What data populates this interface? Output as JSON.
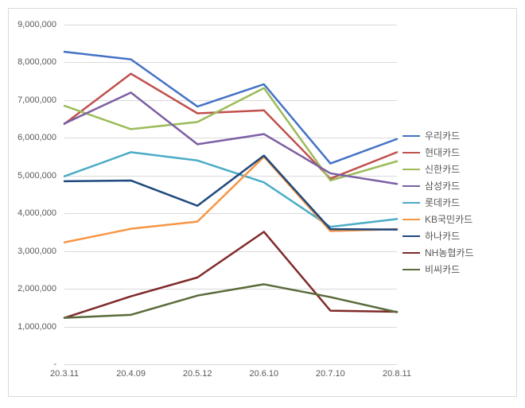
{
  "chart": {
    "type": "line",
    "background_color": "#ffffff",
    "border_color": "#d9d9d9",
    "grid_color": "#d9d9d9",
    "tick_font_color": "#595959",
    "tick_fontsize": 11,
    "legend_fontsize": 12,
    "line_width": 2.5,
    "ylim": [
      0,
      9000000
    ],
    "ytick_step": 1000000,
    "y_ticks": [
      {
        "value": 0,
        "label": "-"
      },
      {
        "value": 1000000,
        "label": "1,000,000"
      },
      {
        "value": 2000000,
        "label": "2,000,000"
      },
      {
        "value": 3000000,
        "label": "3,000,000"
      },
      {
        "value": 4000000,
        "label": "4,000,000"
      },
      {
        "value": 5000000,
        "label": "5,000,000"
      },
      {
        "value": 6000000,
        "label": "6,000,000"
      },
      {
        "value": 7000000,
        "label": "7,000,000"
      },
      {
        "value": 8000000,
        "label": "8,000,000"
      },
      {
        "value": 9000000,
        "label": "9,000,000"
      }
    ],
    "categories": [
      "20.3.11",
      "20.4.09",
      "20.5.12",
      "20.6.10",
      "20.7.10",
      "20.8.11"
    ],
    "series": [
      {
        "name": "우리카드",
        "color": "#4472c4",
        "values": [
          8280000,
          8080000,
          6830000,
          7420000,
          5320000,
          5970000
        ]
      },
      {
        "name": "현대카드",
        "color": "#c0504d",
        "values": [
          6370000,
          7700000,
          6650000,
          6730000,
          4920000,
          5620000
        ]
      },
      {
        "name": "신한카드",
        "color": "#9bbb59",
        "values": [
          6850000,
          6230000,
          6420000,
          7320000,
          4870000,
          5380000
        ]
      },
      {
        "name": "삼성카드",
        "color": "#7b5fa3",
        "values": [
          6380000,
          7200000,
          5830000,
          6100000,
          5060000,
          4780000
        ]
      },
      {
        "name": "롯데카드",
        "color": "#4bacc6",
        "values": [
          4980000,
          5620000,
          5400000,
          4820000,
          3640000,
          3850000
        ]
      },
      {
        "name": "KB국민카드",
        "color": "#f79646",
        "values": [
          3230000,
          3590000,
          3780000,
          5500000,
          3530000,
          3580000
        ]
      },
      {
        "name": "하나카드",
        "color": "#1f497d",
        "values": [
          4850000,
          4870000,
          4200000,
          5530000,
          3580000,
          3570000
        ]
      },
      {
        "name": "NH농협카드",
        "color": "#7f2a2a",
        "values": [
          1230000,
          1800000,
          2300000,
          3510000,
          1420000,
          1390000
        ]
      },
      {
        "name": "비씨카드",
        "color": "#5a6b3b",
        "values": [
          1230000,
          1310000,
          1820000,
          2120000,
          1780000,
          1380000
        ]
      }
    ]
  }
}
